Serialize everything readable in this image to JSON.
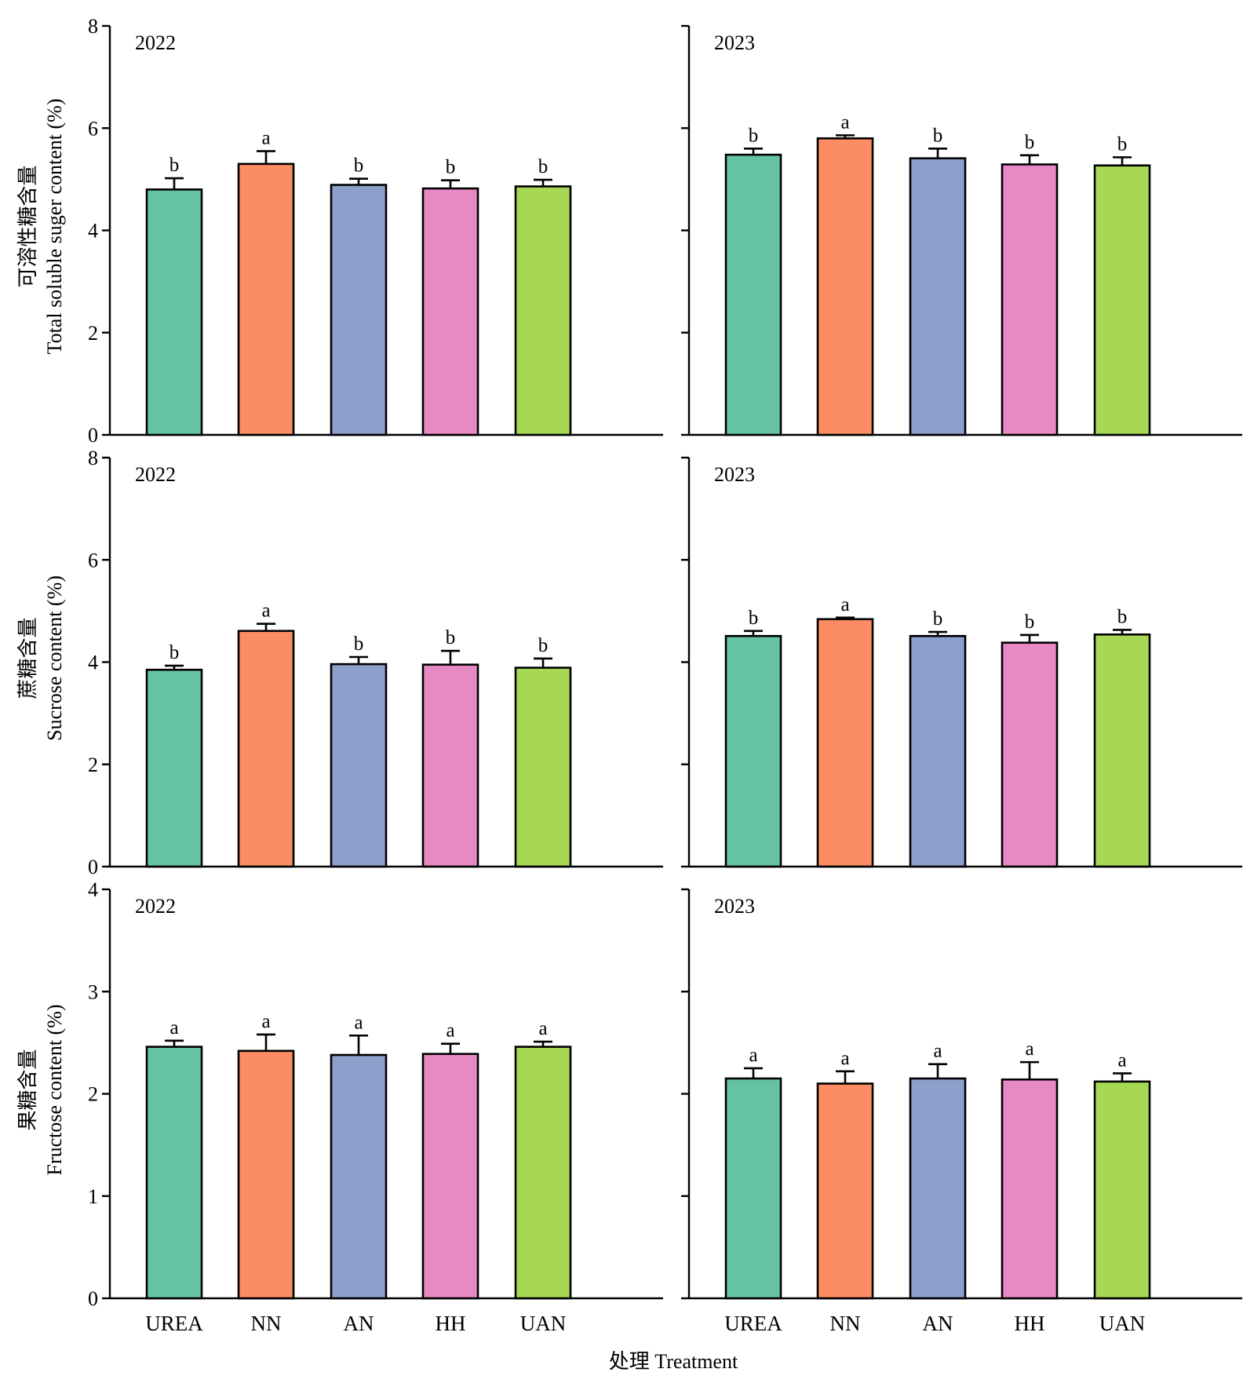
{
  "figure": {
    "xlabel": "处理 Treatment",
    "categories": [
      "UREA",
      "NN",
      "AN",
      "HH",
      "UAN"
    ]
  },
  "colors": {
    "UREA": "#66c2a5",
    "NN": "#fc8d62",
    "AN": "#8da0cb",
    "HH": "#e78ac3",
    "UAN": "#a6d854"
  },
  "chart_data": [
    {
      "type": "bar",
      "row": 0,
      "col": 0,
      "year": "2022",
      "ylabel_cn": "可溶性糖含量",
      "ylabel_en": "Total soluble suger content (%)",
      "ylim": [
        0,
        8
      ],
      "yticks": [
        0,
        2,
        4,
        6,
        8
      ],
      "categories": [
        "UREA",
        "NN",
        "AN",
        "HH",
        "UAN"
      ],
      "values": [
        4.8,
        5.3,
        4.89,
        4.82,
        4.86
      ],
      "errors": [
        0.22,
        0.25,
        0.12,
        0.16,
        0.13
      ],
      "letters": [
        "b",
        "a",
        "b",
        "b",
        "b"
      ]
    },
    {
      "type": "bar",
      "row": 0,
      "col": 1,
      "year": "2023",
      "ylim": [
        0,
        8
      ],
      "yticks": [
        0,
        2,
        4,
        6,
        8
      ],
      "categories": [
        "UREA",
        "NN",
        "AN",
        "HH",
        "UAN"
      ],
      "values": [
        5.48,
        5.8,
        5.41,
        5.29,
        5.27
      ],
      "errors": [
        0.12,
        0.06,
        0.19,
        0.18,
        0.16
      ],
      "letters": [
        "b",
        "a",
        "b",
        "b",
        "b"
      ]
    },
    {
      "type": "bar",
      "row": 1,
      "col": 0,
      "year": "2022",
      "ylabel_cn": "蔗糖含量",
      "ylabel_en": "Sucrose content (%)",
      "ylim": [
        0,
        8
      ],
      "yticks": [
        0,
        2,
        4,
        6,
        8
      ],
      "categories": [
        "UREA",
        "NN",
        "AN",
        "HH",
        "UAN"
      ],
      "values": [
        3.85,
        4.61,
        3.96,
        3.95,
        3.89
      ],
      "errors": [
        0.08,
        0.14,
        0.14,
        0.27,
        0.18
      ],
      "letters": [
        "b",
        "a",
        "b",
        "b",
        "b"
      ]
    },
    {
      "type": "bar",
      "row": 1,
      "col": 1,
      "year": "2023",
      "ylim": [
        0,
        8
      ],
      "yticks": [
        0,
        2,
        4,
        6,
        8
      ],
      "categories": [
        "UREA",
        "NN",
        "AN",
        "HH",
        "UAN"
      ],
      "values": [
        4.51,
        4.84,
        4.51,
        4.38,
        4.54
      ],
      "errors": [
        0.1,
        0.03,
        0.08,
        0.15,
        0.09
      ],
      "letters": [
        "b",
        "a",
        "b",
        "b",
        "b"
      ]
    },
    {
      "type": "bar",
      "row": 2,
      "col": 0,
      "year": "2022",
      "ylabel_cn": "果糖含量",
      "ylabel_en": "Fructose content (%)",
      "ylim": [
        0,
        4
      ],
      "yticks": [
        0,
        1,
        2,
        3,
        4
      ],
      "categories": [
        "UREA",
        "NN",
        "AN",
        "HH",
        "UAN"
      ],
      "values": [
        2.46,
        2.42,
        2.38,
        2.39,
        2.46
      ],
      "errors": [
        0.06,
        0.16,
        0.19,
        0.1,
        0.05
      ],
      "letters": [
        "a",
        "a",
        "a",
        "a",
        "a"
      ]
    },
    {
      "type": "bar",
      "row": 2,
      "col": 1,
      "year": "2023",
      "ylim": [
        0,
        4
      ],
      "yticks": [
        0,
        1,
        2,
        3,
        4
      ],
      "categories": [
        "UREA",
        "NN",
        "AN",
        "HH",
        "UAN"
      ],
      "values": [
        2.15,
        2.1,
        2.15,
        2.14,
        2.12
      ],
      "errors": [
        0.1,
        0.12,
        0.14,
        0.17,
        0.08
      ],
      "letters": [
        "a",
        "a",
        "a",
        "a",
        "a"
      ]
    }
  ]
}
